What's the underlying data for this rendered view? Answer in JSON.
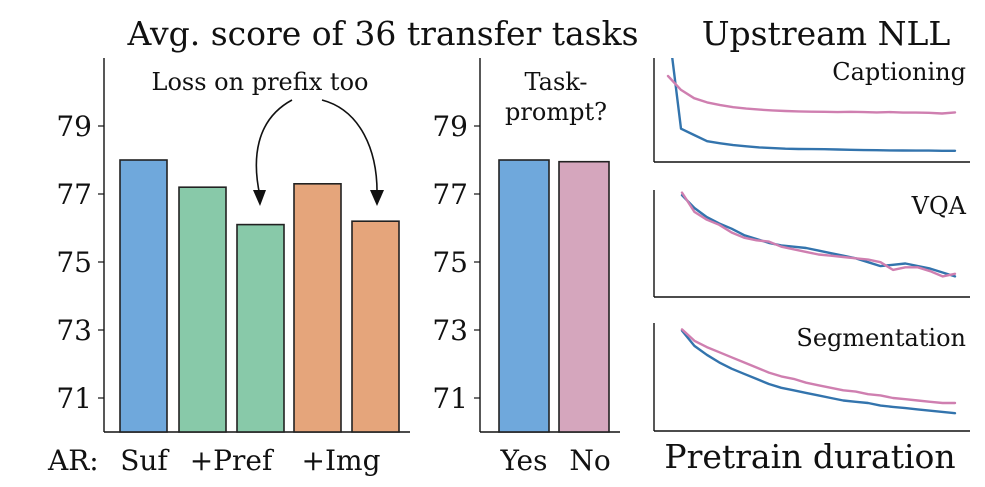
{
  "titles": {
    "left": "Avg. score of 36 transfer tasks",
    "right": "Upstream NLL"
  },
  "colors": {
    "blue": "#6fa8dc",
    "green": "#88c9a9",
    "orange": "#e5a57b",
    "pink": "#d5a6bd",
    "line_blue": "#3374ad",
    "line_pink": "#cf7fb0"
  },
  "chart_data": [
    {
      "type": "bar",
      "id": "ar-variants",
      "annotation": "Loss on prefix too",
      "x_prefix": "AR:",
      "categories": [
        "Suf",
        "+Pref",
        "+Pref",
        "+Img",
        "+Img"
      ],
      "tick_labels": [
        "Suf",
        "+Pref",
        "+Img"
      ],
      "values": [
        78.0,
        77.2,
        76.1,
        77.3,
        76.2
      ],
      "colors": [
        "blue",
        "green",
        "green",
        "orange",
        "orange"
      ],
      "yticks": [
        71,
        73,
        75,
        77,
        79
      ],
      "ylim": [
        70.0,
        81.0
      ],
      "xlabel": "",
      "ylabel": ""
    },
    {
      "type": "bar",
      "id": "task-prompt",
      "annotation": [
        "Task-",
        "prompt?"
      ],
      "categories": [
        "Yes",
        "No"
      ],
      "values": [
        78.0,
        77.95
      ],
      "colors": [
        "blue",
        "pink"
      ],
      "yticks": [
        71,
        73,
        75,
        77,
        79
      ],
      "ylim": [
        70.0,
        81.0
      ],
      "xlabel": "",
      "ylabel": ""
    },
    {
      "type": "line",
      "id": "captioning",
      "label": "Captioning",
      "x": [
        0,
        1,
        2,
        3,
        4,
        5,
        6,
        7,
        8,
        9,
        10,
        11,
        12,
        13,
        14,
        15,
        16,
        17,
        18,
        19,
        20,
        21,
        22
      ],
      "series": [
        {
          "color": "line_blue",
          "values": [
            10.0,
            2.4,
            1.95,
            1.5,
            1.35,
            1.22,
            1.13,
            1.05,
            1.0,
            0.96,
            0.94,
            0.93,
            0.92,
            0.9,
            0.88,
            0.86,
            0.85,
            0.84,
            0.83,
            0.82,
            0.82,
            0.81,
            0.81
          ]
        },
        {
          "color": "line_pink",
          "values": [
            6.2,
            5.2,
            4.6,
            4.3,
            4.1,
            3.95,
            3.85,
            3.78,
            3.72,
            3.68,
            3.65,
            3.63,
            3.62,
            3.6,
            3.62,
            3.6,
            3.58,
            3.6,
            3.56,
            3.56,
            3.55,
            3.5,
            3.58
          ]
        }
      ],
      "ylim": [
        0,
        7.5
      ]
    },
    {
      "type": "line",
      "id": "vqa",
      "label": "VQA",
      "x": [
        0,
        1,
        2,
        3,
        4,
        5,
        6,
        7,
        8,
        9,
        10,
        11,
        12,
        13,
        14,
        15,
        16,
        17,
        18,
        19,
        20,
        21,
        22
      ],
      "series": [
        {
          "color": "line_blue",
          "values": [
            7.9,
            6.9,
            6.2,
            5.7,
            5.3,
            4.8,
            4.5,
            4.2,
            4.0,
            3.9,
            3.8,
            3.6,
            3.4,
            3.2,
            3.0,
            2.7,
            2.4,
            2.5,
            2.6,
            2.4,
            2.2,
            1.9,
            1.6
          ]
        },
        {
          "color": "line_pink",
          "values": [
            8.1,
            6.6,
            6.0,
            5.6,
            5.0,
            4.6,
            4.4,
            4.3,
            3.9,
            3.7,
            3.5,
            3.3,
            3.2,
            3.1,
            3.0,
            2.9,
            2.7,
            2.1,
            2.3,
            2.3,
            2.0,
            1.6,
            1.8
          ]
        }
      ],
      "ylim": [
        0,
        8.3
      ]
    },
    {
      "type": "line",
      "id": "segmentation",
      "label": "Segmentation",
      "x": [
        0,
        1,
        2,
        3,
        4,
        5,
        6,
        7,
        8,
        9,
        10,
        11,
        12,
        13,
        14,
        15,
        16,
        17,
        18,
        19,
        20,
        21,
        22
      ],
      "series": [
        {
          "color": "line_blue",
          "values": [
            7.9,
            6.7,
            6.0,
            5.4,
            4.9,
            4.5,
            4.1,
            3.7,
            3.4,
            3.2,
            3.0,
            2.8,
            2.6,
            2.4,
            2.3,
            2.2,
            2.0,
            1.9,
            1.8,
            1.7,
            1.6,
            1.5,
            1.4
          ]
        },
        {
          "color": "line_pink",
          "values": [
            8.0,
            7.1,
            6.6,
            6.2,
            5.8,
            5.4,
            5.0,
            4.6,
            4.3,
            4.1,
            3.8,
            3.6,
            3.4,
            3.2,
            3.1,
            2.9,
            2.8,
            2.6,
            2.5,
            2.4,
            2.3,
            2.2,
            2.2
          ]
        }
      ],
      "ylim": [
        0,
        8.5
      ]
    }
  ],
  "xlabel_right": "Pretrain duration"
}
